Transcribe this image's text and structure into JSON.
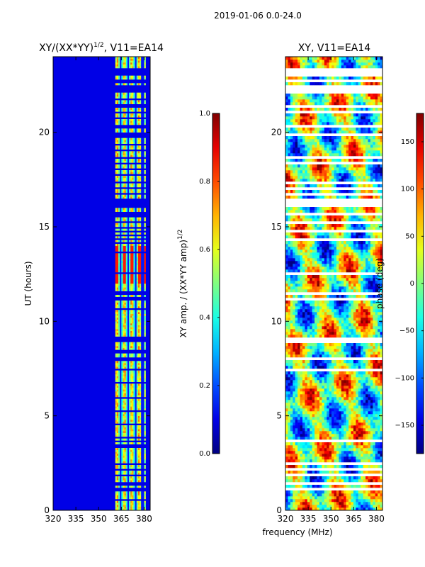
{
  "figure": {
    "suptitle": "2019-01-06 0.0-24.0"
  },
  "chart_data": [
    {
      "type": "heatmap",
      "title": "XY/(XX*YY)^{1/2}, V11=EA14",
      "title_plain": "XY/(XX*YY)",
      "title_exponent": "1/2",
      "title_suffix": ", V11=EA14",
      "xlabel": "",
      "ylabel": "UT (hours)",
      "xlim": [
        320,
        384
      ],
      "ylim": [
        0,
        24
      ],
      "xticks": [
        320,
        335,
        350,
        365,
        380
      ],
      "yticks": [
        0,
        5,
        10,
        15,
        20
      ],
      "colormap": "jet",
      "colorbar": {
        "label": "XY amp. / (XX*YY amp)^{1/2}",
        "label_plain": "XY amp. / (XX*YY amp)",
        "label_exponent": "1/2",
        "range": [
          0.0,
          1.0
        ],
        "ticks": [
          "0.0",
          "0.2",
          "0.4",
          "0.6",
          "0.8",
          "1.0"
        ]
      },
      "description_values": {
        "background_level": 0.1,
        "rfi_channel_band_mhz": [
          361,
          381
        ],
        "rfi_level_range": [
          0.3,
          0.8
        ],
        "hot_band_hours": [
          12,
          14
        ],
        "hot_band_level": 0.85
      }
    },
    {
      "type": "heatmap",
      "title": "XY, V11=EA14",
      "xlabel": "frequency (MHz)",
      "ylabel": "",
      "xlim": [
        320,
        384
      ],
      "ylim": [
        0,
        24
      ],
      "xticks": [
        320,
        335,
        350,
        365,
        380
      ],
      "yticks": [
        0,
        5,
        10,
        15,
        20
      ],
      "colormap": "jet",
      "colorbar": {
        "label": "phase (deg)",
        "range": [
          -180,
          180
        ],
        "ticks": [
          "-150",
          "-100",
          "-50",
          "0",
          "50",
          "100",
          "150"
        ]
      }
    }
  ],
  "flagged_hours": [
    [
      0.55,
      0.62
    ],
    [
      1.05,
      1.2
    ],
    [
      1.35,
      1.45
    ],
    [
      1.85,
      1.9
    ],
    [
      2.15,
      2.2
    ],
    [
      2.45,
      2.5
    ],
    [
      3.3,
      3.35
    ],
    [
      3.45,
      3.5
    ],
    [
      3.62,
      3.68
    ],
    [
      3.85,
      3.9
    ],
    [
      4.5,
      4.55
    ],
    [
      5.2,
      5.25
    ],
    [
      5.95,
      6.0
    ],
    [
      6.7,
      6.75
    ],
    [
      7.4,
      7.45
    ],
    [
      7.95,
      8.05
    ],
    [
      8.35,
      8.45
    ],
    [
      8.9,
      9.2
    ],
    [
      10.6,
      10.65
    ],
    [
      11.1,
      11.25
    ],
    [
      11.45,
      11.55
    ],
    [
      12.5,
      12.6
    ],
    [
      13.6,
      13.65
    ],
    [
      14.1,
      14.15
    ],
    [
      14.3,
      14.35
    ],
    [
      14.55,
      14.6
    ],
    [
      14.75,
      14.8
    ],
    [
      14.95,
      15.0
    ],
    [
      15.2,
      15.25
    ],
    [
      15.55,
      15.8
    ],
    [
      16.05,
      16.5
    ],
    [
      16.7,
      16.8
    ],
    [
      17.0,
      17.05
    ],
    [
      17.3,
      17.35
    ],
    [
      17.7,
      17.75
    ],
    [
      18.0,
      18.05
    ],
    [
      18.35,
      18.4
    ],
    [
      18.65,
      18.7
    ],
    [
      19.0,
      19.05
    ],
    [
      19.35,
      19.4
    ],
    [
      19.75,
      20.0
    ],
    [
      20.2,
      20.4
    ],
    [
      20.7,
      20.75
    ],
    [
      21.05,
      21.1
    ],
    [
      21.35,
      21.45
    ],
    [
      21.7,
      21.75
    ],
    [
      22.1,
      22.45
    ],
    [
      22.65,
      22.75
    ],
    [
      23.0,
      23.35
    ]
  ]
}
